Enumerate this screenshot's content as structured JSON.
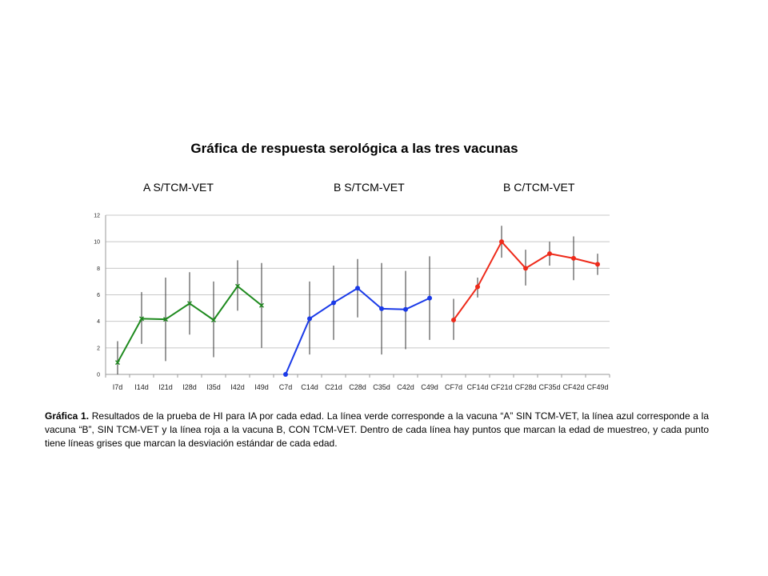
{
  "chart_data": {
    "type": "line",
    "title": "Gráfica de respuesta serológica a las tres vacunas",
    "group_labels": [
      "A  S/TCM-VET",
      "B S/TCM-VET",
      "B C/TCM-VET"
    ],
    "categories": [
      "I7d",
      "I14d",
      "I21d",
      "I28d",
      "I35d",
      "I42d",
      "I49d",
      "C7d",
      "C14d",
      "C21d",
      "C28d",
      "C35d",
      "C42d",
      "C49d",
      "CF7d",
      "CF14d",
      "CF21d",
      "CF28d",
      "CF35d",
      "CF42d",
      "CF49d"
    ],
    "ylim": [
      0,
      12
    ],
    "yticks": [
      0,
      2,
      4,
      6,
      8,
      10,
      12
    ],
    "grid": true,
    "series": [
      {
        "color": "#1e8a1e",
        "marker": "x",
        "x": [
          "I7d",
          "I14d",
          "I21d",
          "I28d",
          "I35d",
          "I42d",
          "I49d"
        ],
        "values": [
          0.9,
          4.2,
          4.15,
          5.35,
          4.1,
          6.65,
          5.2
        ],
        "err_low": [
          0,
          2.3,
          1.0,
          3.0,
          1.3,
          4.8,
          2.0
        ],
        "err_high": [
          2.5,
          6.2,
          7.3,
          7.7,
          7.0,
          8.6,
          8.4
        ]
      },
      {
        "color": "#1a3ae8",
        "marker": "circle",
        "x": [
          "C7d",
          "C14d",
          "C21d",
          "C28d",
          "C35d",
          "C42d",
          "C49d"
        ],
        "values": [
          0,
          4.2,
          5.4,
          6.5,
          4.95,
          4.9,
          5.75
        ],
        "err_low": [
          null,
          1.5,
          2.6,
          4.3,
          1.5,
          1.9,
          2.6
        ],
        "err_high": [
          null,
          7.0,
          8.2,
          8.7,
          8.4,
          7.8,
          8.9
        ]
      },
      {
        "color": "#ee2a1a",
        "marker": "circle",
        "x": [
          "CF7d",
          "CF14d",
          "CF21d",
          "CF28d",
          "CF35d",
          "CF42d",
          "CF49d"
        ],
        "values": [
          4.1,
          6.6,
          10.0,
          8.0,
          9.1,
          8.75,
          8.3
        ],
        "err_low": [
          2.6,
          5.8,
          8.8,
          6.7,
          8.2,
          7.1,
          7.5
        ],
        "err_high": [
          5.7,
          7.3,
          11.2,
          9.4,
          10.0,
          10.4,
          9.1
        ]
      }
    ],
    "error_bar_color": "#333333"
  },
  "caption": {
    "lead": "Gráfica 1.",
    "text": "  Resultados de la prueba de HI para IA por cada edad.  La línea verde corresponde a la vacuna “A” SIN TCM-VET, la línea azul corresponde a la vacuna “B”, SIN TCM-VET y la línea roja a la vacuna B, CON TCM-VET. Dentro de cada línea hay puntos que marcan la edad de muestreo, y cada punto tiene líneas grises que marcan la desviación estándar de cada edad."
  }
}
